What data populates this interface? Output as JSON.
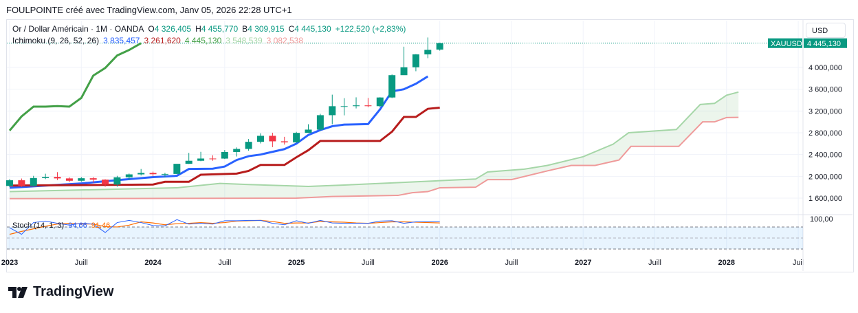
{
  "caption": "FOULPOINTE créé avec TradingView.com, Janv 05, 2026 22:28 UTC+1",
  "legend": {
    "symbol": "Or / Dollar Américain · 1M · OANDA",
    "o_label": "O",
    "o": "4 326,405",
    "h_label": "H",
    "h": "4 455,770",
    "l_label": "B",
    "l": "4 309,915",
    "c_label": "C",
    "c": "4 445,130",
    "change": "+122,520 (+2,83%)",
    "ichimoku_label": "Ichimoku (9, 26, 52, 26)",
    "tenkan": "3 835,457",
    "kijun": "3 261,620",
    "chikou": "4 445,130",
    "span_a": "3 548,539",
    "span_b": "3 082,538",
    "stoch_label": "Stoch (14, 1, 3)",
    "stoch_k": "94,66",
    "stoch_d": "91,46"
  },
  "currency": "USD",
  "price_tag": {
    "symbol": "XAUUSD",
    "value": "4 445,130"
  },
  "logo": "TradingView",
  "colors": {
    "up": "#089981",
    "down": "#f23645",
    "tenkan": "#2962ff",
    "kijun": "#b71c1c",
    "chikou": "#43a047",
    "span_a": "#a5d6a7",
    "span_b": "#ef9a9a",
    "stoch_k": "#2962ff",
    "stoch_d": "#ff6d00"
  },
  "chart_data": {
    "type": "candlestick",
    "title": "Or / Dollar Américain · 1M · OANDA",
    "ylim": [
      1450,
      4650
    ],
    "y_ticks": [
      "4 000,000",
      "3 600,000",
      "3 200,000",
      "2 800,000",
      "2 400,000",
      "2 000,000",
      "1 600,000"
    ],
    "y_tick_values": [
      4000,
      3600,
      3200,
      2800,
      2400,
      2000,
      1600
    ],
    "x_ticks": [
      {
        "m": 0,
        "label": "2023"
      },
      {
        "m": 6,
        "label": "Juill"
      },
      {
        "m": 12,
        "label": "2024"
      },
      {
        "m": 18,
        "label": "Juill"
      },
      {
        "m": 24,
        "label": "2025"
      },
      {
        "m": 30,
        "label": "Juill"
      },
      {
        "m": 36,
        "label": "2026"
      },
      {
        "m": 42,
        "label": "Juill"
      },
      {
        "m": 48,
        "label": "2027"
      },
      {
        "m": 54,
        "label": "Juill"
      },
      {
        "m": 60,
        "label": "2028"
      },
      {
        "m": 66,
        "label": "Juil"
      }
    ],
    "candles_ohlc": [
      [
        1824,
        1949,
        1804,
        1928
      ],
      [
        1928,
        1960,
        1804,
        1826
      ],
      [
        1826,
        2009,
        1810,
        1969
      ],
      [
        1969,
        2048,
        1949,
        1990
      ],
      [
        1990,
        2077,
        1932,
        1962
      ],
      [
        1962,
        1983,
        1893,
        1919
      ],
      [
        1919,
        1987,
        1902,
        1965
      ],
      [
        1965,
        1987,
        1884,
        1940
      ],
      [
        1940,
        1947,
        1810,
        1849
      ],
      [
        1849,
        2009,
        1810,
        1983
      ],
      [
        1983,
        2052,
        1931,
        2036
      ],
      [
        2036,
        2135,
        2016,
        2063
      ],
      [
        2063,
        2088,
        2001,
        2039
      ],
      [
        2039,
        2065,
        1984,
        2044
      ],
      [
        2044,
        2225,
        2039,
        2230
      ],
      [
        2230,
        2431,
        2228,
        2286
      ],
      [
        2286,
        2450,
        2277,
        2327
      ],
      [
        2327,
        2387,
        2286,
        2326
      ],
      [
        2326,
        2483,
        2318,
        2447
      ],
      [
        2447,
        2531,
        2364,
        2503
      ],
      [
        2503,
        2685,
        2471,
        2634
      ],
      [
        2634,
        2790,
        2604,
        2744
      ],
      [
        2744,
        2801,
        2536,
        2643
      ],
      [
        2643,
        2726,
        2583,
        2624
      ],
      [
        2624,
        2817,
        2614,
        2798
      ],
      [
        2798,
        2956,
        2833,
        2858
      ],
      [
        2858,
        3148,
        2832,
        3123
      ],
      [
        3123,
        3500,
        2957,
        3288
      ],
      [
        3288,
        3435,
        3120,
        3289
      ],
      [
        3289,
        3451,
        3247,
        3303
      ],
      [
        3303,
        3439,
        3268,
        3289
      ],
      [
        3289,
        3453,
        3268,
        3448
      ],
      [
        3448,
        3871,
        3436,
        3858
      ],
      [
        3858,
        4381,
        3886,
        4002
      ],
      [
        4002,
        4245,
        3930,
        4239
      ],
      [
        4239,
        4550,
        4170,
        4322
      ],
      [
        4326,
        4455,
        4309,
        4445
      ]
    ],
    "series": [
      {
        "name": "Tenkan",
        "pts": [
          [
            0,
            1790
          ],
          [
            6,
            1870
          ],
          [
            9,
            1930
          ],
          [
            12,
            1985
          ],
          [
            14,
            2010
          ],
          [
            15,
            2135
          ],
          [
            17,
            2140
          ],
          [
            18,
            2180
          ],
          [
            19,
            2300
          ],
          [
            20,
            2370
          ],
          [
            21,
            2400
          ],
          [
            23,
            2500
          ],
          [
            24,
            2600
          ],
          [
            25,
            2760
          ],
          [
            26,
            2850
          ],
          [
            27,
            2920
          ],
          [
            28,
            2950
          ],
          [
            30,
            2960
          ],
          [
            31,
            3230
          ],
          [
            32,
            3560
          ],
          [
            33,
            3600
          ],
          [
            34,
            3700
          ],
          [
            35,
            3835
          ]
        ]
      },
      {
        "name": "Kijun",
        "pts": [
          [
            0,
            1830
          ],
          [
            12,
            1850
          ],
          [
            13,
            1900
          ],
          [
            15,
            1900
          ],
          [
            16,
            2030
          ],
          [
            19,
            2050
          ],
          [
            20,
            2100
          ],
          [
            21,
            2210
          ],
          [
            23,
            2210
          ],
          [
            24,
            2350
          ],
          [
            25,
            2480
          ],
          [
            26,
            2650
          ],
          [
            31,
            2650
          ],
          [
            32,
            2820
          ],
          [
            33,
            3090
          ],
          [
            34,
            3090
          ],
          [
            35,
            3240
          ],
          [
            36,
            3261
          ]
        ]
      },
      {
        "name": "Chikou",
        "pts": [
          [
            0,
            2840
          ],
          [
            1,
            3100
          ],
          [
            2,
            3280
          ],
          [
            3,
            3280
          ],
          [
            4,
            3290
          ],
          [
            5,
            3280
          ],
          [
            6,
            3440
          ],
          [
            7,
            3850
          ],
          [
            8,
            3990
          ],
          [
            9,
            4220
          ],
          [
            10,
            4320
          ],
          [
            11,
            4445
          ]
        ]
      },
      {
        "name": "Span A",
        "pts": [
          [
            0,
            1720
          ],
          [
            8,
            1760
          ],
          [
            14,
            1790
          ],
          [
            17.6,
            1870
          ],
          [
            20,
            1850
          ],
          [
            25,
            1815
          ],
          [
            28,
            1840
          ],
          [
            32,
            1880
          ],
          [
            36,
            1920
          ],
          [
            39,
            1950
          ],
          [
            40,
            2080
          ],
          [
            43,
            2130
          ],
          [
            45,
            2200
          ],
          [
            48,
            2360
          ],
          [
            50.5,
            2590
          ],
          [
            51.8,
            2800
          ],
          [
            55.8,
            2860
          ],
          [
            57.8,
            3320
          ],
          [
            59,
            3340
          ],
          [
            60,
            3490
          ],
          [
            61,
            3548
          ]
        ]
      },
      {
        "name": "Span B",
        "pts": [
          [
            0,
            1590
          ],
          [
            24,
            1600
          ],
          [
            27,
            1630
          ],
          [
            32.5,
            1650
          ],
          [
            33.7,
            1700
          ],
          [
            35,
            1720
          ],
          [
            36,
            1790
          ],
          [
            39,
            1800
          ],
          [
            40,
            1940
          ],
          [
            42,
            1940
          ],
          [
            45,
            2100
          ],
          [
            47,
            2200
          ],
          [
            49,
            2200
          ],
          [
            51,
            2300
          ],
          [
            52,
            2550
          ],
          [
            56,
            2550
          ],
          [
            58,
            3000
          ],
          [
            59,
            3000
          ],
          [
            60,
            3080
          ],
          [
            61,
            3082
          ]
        ]
      }
    ],
    "stoch": {
      "ylim": [
        0,
        100
      ],
      "bands": [
        80,
        50,
        20
      ],
      "top_label": "100,00",
      "k": [
        78,
        60,
        92,
        96,
        90,
        85,
        90,
        88,
        65,
        92,
        98,
        92,
        84,
        83,
        100,
        88,
        90,
        88,
        97,
        97,
        98,
        98,
        90,
        86,
        97,
        90,
        98,
        91,
        90,
        90,
        90,
        96,
        97,
        90,
        94,
        94,
        95
      ],
      "d": [
        60,
        68,
        75,
        82,
        88,
        90,
        88,
        88,
        81,
        80,
        85,
        94,
        91,
        86,
        89,
        90,
        92,
        90,
        92,
        96,
        97,
        98,
        95,
        90,
        91,
        91,
        95,
        94,
        93,
        91,
        90,
        92,
        94,
        94,
        93,
        92,
        91
      ]
    }
  }
}
